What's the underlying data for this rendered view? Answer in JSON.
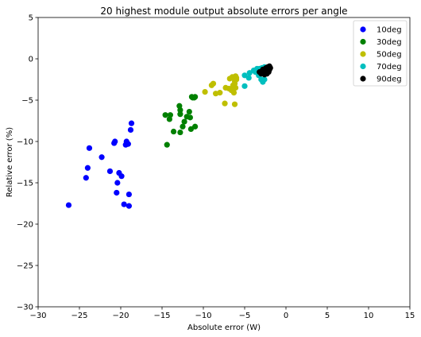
{
  "chart_data": {
    "type": "scatter",
    "title": "20 highest module output absolute errors per angle",
    "xlabel": "Absolute error (W)",
    "ylabel": "Relative error (%)",
    "xlim": [
      -30,
      15
    ],
    "ylim": [
      -30,
      5
    ],
    "xticks": [
      -30,
      -25,
      -20,
      -15,
      -10,
      -5,
      0,
      5,
      10,
      15
    ],
    "yticks": [
      -30,
      -25,
      -20,
      -15,
      -10,
      -5,
      0,
      5
    ],
    "xtick_labels": [
      "−30",
      "−25",
      "−20",
      "−15",
      "−10",
      "−5",
      "0",
      "5",
      "10",
      "15"
    ],
    "ytick_labels": [
      "−30",
      "−25",
      "−20",
      "−15",
      "−10",
      "−5",
      "0",
      "5"
    ],
    "grid": false,
    "legend_position": "top-right",
    "series": [
      {
        "name": "10deg",
        "color": "#0000ff",
        "points": [
          [
            -26.3,
            -17.7
          ],
          [
            -24.2,
            -14.4
          ],
          [
            -24.0,
            -13.2
          ],
          [
            -23.8,
            -10.8
          ],
          [
            -22.3,
            -11.9
          ],
          [
            -21.3,
            -13.6
          ],
          [
            -20.8,
            -10.2
          ],
          [
            -20.7,
            -10.0
          ],
          [
            -20.5,
            -16.2
          ],
          [
            -20.4,
            -15.0
          ],
          [
            -20.2,
            -13.8
          ],
          [
            -19.9,
            -14.2
          ],
          [
            -19.6,
            -17.6
          ],
          [
            -19.4,
            -10.4
          ],
          [
            -19.3,
            -10.0
          ],
          [
            -19.1,
            -10.3
          ],
          [
            -19.0,
            -16.4
          ],
          [
            -19.0,
            -17.8
          ],
          [
            -18.8,
            -8.6
          ],
          [
            -18.7,
            -7.8
          ]
        ]
      },
      {
        "name": "30deg",
        "color": "#008000",
        "points": [
          [
            -14.6,
            -6.8
          ],
          [
            -14.4,
            -10.4
          ],
          [
            -14.1,
            -7.3
          ],
          [
            -14.0,
            -6.8
          ],
          [
            -13.6,
            -8.8
          ],
          [
            -12.9,
            -5.7
          ],
          [
            -12.8,
            -6.2
          ],
          [
            -12.8,
            -6.7
          ],
          [
            -12.8,
            -8.9
          ],
          [
            -12.5,
            -8.2
          ],
          [
            -12.3,
            -7.6
          ],
          [
            -12.0,
            -7.0
          ],
          [
            -11.7,
            -6.4
          ],
          [
            -11.6,
            -7.1
          ],
          [
            -11.5,
            -8.5
          ],
          [
            -11.4,
            -4.6
          ],
          [
            -11.1,
            -4.7
          ],
          [
            -11.0,
            -8.2
          ],
          [
            -11.0,
            -4.6
          ],
          [
            -11.3,
            -4.7
          ]
        ]
      },
      {
        "name": "50deg",
        "color": "#bfbf00",
        "points": [
          [
            -9.8,
            -4.0
          ],
          [
            -9.0,
            -3.2
          ],
          [
            -8.8,
            -3.0
          ],
          [
            -8.5,
            -4.2
          ],
          [
            -8.0,
            -4.1
          ],
          [
            -7.4,
            -5.4
          ],
          [
            -7.3,
            -3.5
          ],
          [
            -6.9,
            -3.6
          ],
          [
            -6.8,
            -2.4
          ],
          [
            -6.6,
            -3.8
          ],
          [
            -6.5,
            -2.2
          ],
          [
            -6.4,
            -3.2
          ],
          [
            -6.3,
            -4.1
          ],
          [
            -6.2,
            -2.7
          ],
          [
            -6.2,
            -3.0
          ],
          [
            -6.1,
            -2.1
          ],
          [
            -6.0,
            -2.5
          ],
          [
            -6.1,
            -3.5
          ],
          [
            -6.2,
            -5.5
          ],
          [
            -6.0,
            -2.3
          ]
        ]
      },
      {
        "name": "70deg",
        "color": "#00bfbf",
        "points": [
          [
            -5.0,
            -3.3
          ],
          [
            -5.0,
            -2.0
          ],
          [
            -4.5,
            -2.3
          ],
          [
            -4.4,
            -1.7
          ],
          [
            -3.9,
            -1.4
          ],
          [
            -3.7,
            -1.6
          ],
          [
            -3.5,
            -1.2
          ],
          [
            -3.3,
            -2.0
          ],
          [
            -3.2,
            -1.2
          ],
          [
            -3.1,
            -1.7
          ],
          [
            -3.0,
            -2.5
          ],
          [
            -2.9,
            -1.1
          ],
          [
            -2.9,
            -1.4
          ],
          [
            -2.8,
            -2.8
          ],
          [
            -2.7,
            -1.3
          ],
          [
            -2.6,
            -2.5
          ],
          [
            -2.6,
            -1.0
          ],
          [
            -2.5,
            -1.5
          ],
          [
            -2.4,
            -1.2
          ],
          [
            -2.4,
            -1.8
          ]
        ]
      },
      {
        "name": "90deg",
        "color": "#000000",
        "points": [
          [
            -3.2,
            -1.6
          ],
          [
            -3.0,
            -1.8
          ],
          [
            -2.9,
            -1.5
          ],
          [
            -2.8,
            -1.3
          ],
          [
            -2.7,
            -1.7
          ],
          [
            -2.6,
            -1.4
          ],
          [
            -2.5,
            -1.2
          ],
          [
            -2.5,
            -1.6
          ],
          [
            -2.4,
            -1.1
          ],
          [
            -2.4,
            -1.5
          ],
          [
            -2.3,
            -1.3
          ],
          [
            -2.3,
            -1.8
          ],
          [
            -2.2,
            -1.0
          ],
          [
            -2.2,
            -1.4
          ],
          [
            -2.1,
            -1.2
          ],
          [
            -2.1,
            -1.6
          ],
          [
            -2.0,
            -0.9
          ],
          [
            -2.0,
            -1.3
          ],
          [
            -1.9,
            -1.1
          ],
          [
            -2.6,
            -1.9
          ]
        ]
      }
    ]
  }
}
